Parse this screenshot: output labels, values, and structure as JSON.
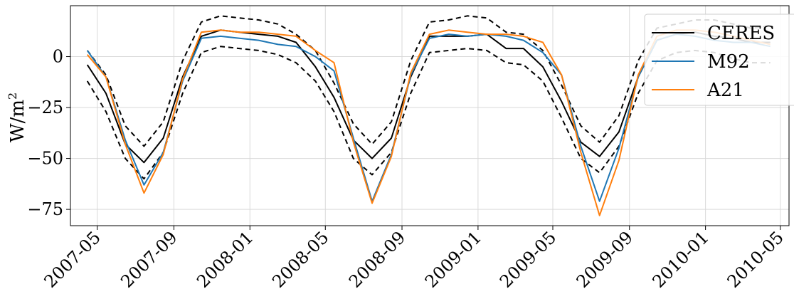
{
  "chart_data": {
    "type": "line",
    "xlabel": "",
    "ylabel": "W/m",
    "ylabel_sup": "2",
    "ylim": [
      -83,
      25
    ],
    "yticks": [
      0,
      -25,
      -50,
      -75
    ],
    "ytick_labels": [
      "0",
      "−25",
      "−50",
      "−75"
    ],
    "xlim": [
      "2007-03-19",
      "2010-05-15"
    ],
    "xticks": [
      "2007-05-01",
      "2007-09-01",
      "2008-01-01",
      "2008-05-01",
      "2008-09-01",
      "2009-01-01",
      "2009-05-01",
      "2009-09-01",
      "2010-01-01",
      "2010-05-01"
    ],
    "xtick_labels": [
      "2007-05",
      "2007-09",
      "2008-01",
      "2008-05",
      "2008-09",
      "2009-01",
      "2009-05",
      "2009-09",
      "2010-01",
      "2010-05"
    ],
    "grid": true,
    "legend_position": "top-right",
    "x": [
      "2007-04-15",
      "2007-05-15",
      "2007-06-15",
      "2007-07-15",
      "2007-08-15",
      "2007-09-15",
      "2007-10-15",
      "2007-11-15",
      "2007-12-15",
      "2008-01-15",
      "2008-02-15",
      "2008-03-15",
      "2008-04-15",
      "2008-05-15",
      "2008-06-15",
      "2008-07-15",
      "2008-08-15",
      "2008-09-15",
      "2008-10-15",
      "2008-11-15",
      "2008-12-15",
      "2009-01-15",
      "2009-02-15",
      "2009-03-15",
      "2009-04-15",
      "2009-05-15",
      "2009-06-15",
      "2009-07-15",
      "2009-08-15",
      "2009-09-15",
      "2009-10-15",
      "2009-11-15",
      "2009-12-15",
      "2010-01-15",
      "2010-02-15",
      "2010-03-15",
      "2010-04-15"
    ],
    "series": [
      {
        "name": "CERES",
        "color": "#000000",
        "dash": false,
        "values": [
          -4,
          -18,
          -43,
          -52,
          -40,
          -10,
          10,
          13,
          12,
          11,
          10,
          7,
          -5,
          -20,
          -41,
          -50,
          -40,
          -10,
          10,
          10,
          10,
          11,
          4,
          4,
          -5,
          -22,
          -42,
          -49,
          -37,
          -10,
          8,
          11,
          12,
          10,
          9,
          7,
          7
        ]
      },
      {
        "name": "CERES upper bound",
        "legend": false,
        "color": "#000000",
        "dash": true,
        "values": [
          3,
          -9,
          -34,
          -44,
          -32,
          -2,
          17,
          20,
          19,
          18,
          16,
          11,
          3,
          -13,
          -33,
          -43,
          -32,
          -2,
          17,
          18,
          20,
          19,
          12,
          11,
          3,
          -14,
          -34,
          -42,
          -29,
          -2,
          14,
          16,
          18,
          18,
          16,
          14,
          15
        ]
      },
      {
        "name": "CERES lower bound",
        "legend": false,
        "color": "#000000",
        "dash": true,
        "values": [
          -12,
          -27,
          -50,
          -60,
          -47,
          -18,
          2,
          5,
          4,
          3,
          1,
          -3,
          -12,
          -27,
          -50,
          -58,
          -47,
          -18,
          2,
          3,
          4,
          3,
          -3,
          -4,
          -12,
          -30,
          -50,
          -57,
          -44,
          -18,
          -2,
          2,
          3,
          2,
          -1,
          -3,
          -3
        ]
      },
      {
        "name": "M92",
        "color": "#1f77b4",
        "dash": false,
        "values": [
          3,
          -10,
          -41,
          -63,
          -47,
          -12,
          9,
          10,
          9,
          8,
          6,
          5,
          0,
          -7,
          -40,
          -71,
          -48,
          -9,
          9,
          11,
          10,
          11,
          10,
          8,
          2,
          -9,
          -44,
          -71,
          -45,
          -10,
          8,
          11,
          10,
          8,
          7,
          7,
          5
        ]
      },
      {
        "name": "A21",
        "color": "#ff7f0e",
        "dash": false,
        "values": [
          1,
          -10,
          -43,
          -67,
          -48,
          -11,
          12,
          13,
          12,
          12,
          11,
          10,
          3,
          -3,
          -42,
          -72,
          -49,
          -8,
          11,
          13,
          12,
          11,
          11,
          10,
          7,
          -9,
          -47,
          -78,
          -51,
          -9,
          10,
          13,
          13,
          12,
          10,
          8,
          6
        ]
      }
    ]
  }
}
